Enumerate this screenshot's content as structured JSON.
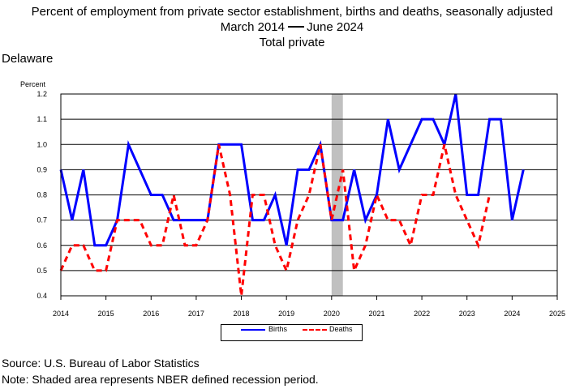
{
  "title": {
    "line1": "Percent of employment from private sector establishment, births and deaths, seasonally adjusted",
    "line2_start": "March 2014",
    "line2_end": "June 2024",
    "line3": "Total private"
  },
  "region": "Delaware",
  "footer": {
    "source": "Source: U.S. Bureau of Labor Statistics",
    "note": "Note: Shaded area represents NBER defined recession period."
  },
  "colors": {
    "births": "#0000ff",
    "deaths": "#ff0000",
    "recession": "#c0c0c0"
  },
  "chart_data": {
    "type": "line",
    "ylabel": "Percent",
    "xlim": [
      2014,
      2025
    ],
    "ylim": [
      0.4,
      1.2
    ],
    "x_ticks": [
      "2014",
      "2015",
      "2016",
      "2017",
      "2018",
      "2019",
      "2020",
      "2021",
      "2022",
      "2023",
      "2024",
      "2025"
    ],
    "y_ticks": [
      "0.4",
      "0.5",
      "0.6",
      "0.7",
      "0.8",
      "0.9",
      "1.0",
      "1.1",
      "1.2"
    ],
    "grid": "horizontal",
    "legend_position": "bottom-center",
    "recession_shading": [
      2020.0,
      2020.25
    ],
    "series": [
      {
        "name": "Births",
        "style": "solid",
        "x": [
          2014.0,
          2014.25,
          2014.5,
          2014.75,
          2015.0,
          2015.25,
          2015.5,
          2015.75,
          2016.0,
          2016.25,
          2016.5,
          2016.75,
          2017.0,
          2017.25,
          2017.5,
          2017.75,
          2018.0,
          2018.25,
          2018.5,
          2018.75,
          2019.0,
          2019.25,
          2019.5,
          2019.75,
          2020.0,
          2020.25,
          2020.5,
          2020.75,
          2021.0,
          2021.25,
          2021.5,
          2021.75,
          2022.0,
          2022.25,
          2022.5,
          2022.75,
          2023.0,
          2023.25,
          2023.5,
          2023.75,
          2024.0,
          2024.25
        ],
        "values": [
          0.9,
          0.7,
          0.9,
          0.6,
          0.6,
          0.7,
          1.0,
          0.9,
          0.8,
          0.8,
          0.7,
          0.7,
          0.7,
          0.7,
          1.0,
          1.0,
          1.0,
          0.7,
          0.7,
          0.8,
          0.6,
          0.9,
          0.9,
          1.0,
          0.7,
          0.7,
          0.9,
          0.7,
          0.8,
          1.1,
          0.9,
          1.0,
          1.1,
          1.1,
          1.0,
          1.2,
          0.8,
          0.8,
          1.1,
          1.1,
          0.7,
          0.9
        ]
      },
      {
        "name": "Deaths",
        "style": "dashed",
        "x": [
          2014.0,
          2014.25,
          2014.5,
          2014.75,
          2015.0,
          2015.25,
          2015.5,
          2015.75,
          2016.0,
          2016.25,
          2016.5,
          2016.75,
          2017.0,
          2017.25,
          2017.5,
          2017.75,
          2018.0,
          2018.25,
          2018.5,
          2018.75,
          2019.0,
          2019.25,
          2019.5,
          2019.75,
          2020.0,
          2020.25,
          2020.5,
          2020.75,
          2021.0,
          2021.25,
          2021.5,
          2021.75,
          2022.0,
          2022.25,
          2022.5,
          2022.75,
          2023.0,
          2023.25,
          2023.5
        ],
        "values": [
          0.5,
          0.6,
          0.6,
          0.5,
          0.5,
          0.7,
          0.7,
          0.7,
          0.6,
          0.6,
          0.8,
          0.6,
          0.6,
          0.7,
          1.0,
          0.8,
          0.4,
          0.8,
          0.8,
          0.6,
          0.5,
          0.7,
          0.8,
          1.0,
          0.7,
          0.9,
          0.5,
          0.6,
          0.8,
          0.7,
          0.7,
          0.6,
          0.8,
          0.8,
          1.0,
          0.8,
          0.7,
          0.6,
          0.8
        ]
      }
    ]
  }
}
